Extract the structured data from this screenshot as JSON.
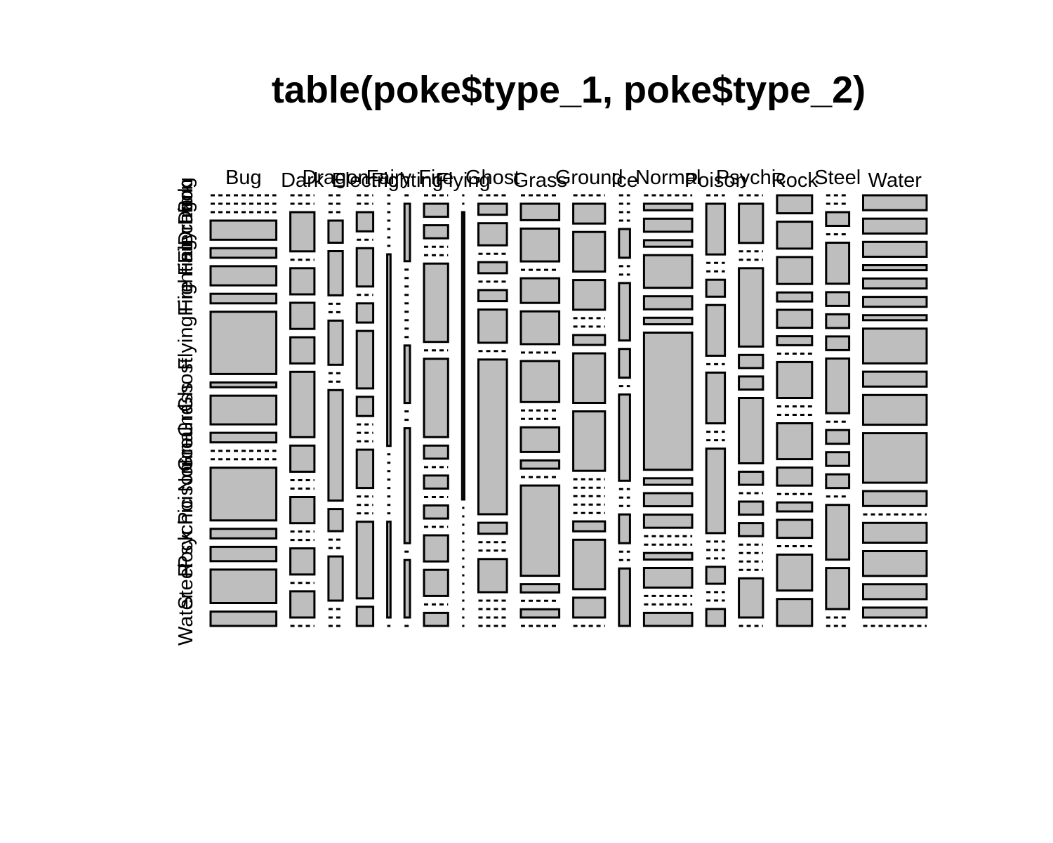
{
  "chart_data": {
    "type": "mosaic",
    "title": "table(poke$type_1, poke$type_2)",
    "xlabel": "",
    "ylabel": "",
    "column_variable_levels": [
      "Bug",
      "Dark",
      "Dragon",
      "Electric",
      "Fairy",
      "Fighting",
      "Fire",
      "Flying",
      "Ghost",
      "Grass",
      "Ground",
      "Ice",
      "Normal",
      "Poison",
      "Psychic",
      "Rock",
      "Steel",
      "Water"
    ],
    "row_variable_levels": [
      "Bug",
      "Dark",
      "Dragon",
      "Electric",
      "Fairy",
      "Fighting",
      "Fire",
      "Flying",
      "Ghost",
      "Grass",
      "Ground",
      "Ice",
      "Normal",
      "Poison",
      "Psychic",
      "Rock",
      "Steel",
      "Water"
    ],
    "counts": [
      [
        0,
        0,
        0,
        4,
        2,
        4,
        2,
        13,
        1,
        6,
        2,
        0,
        0,
        11,
        2,
        3,
        7,
        3
      ],
      [
        0,
        0,
        3,
        0,
        2,
        2,
        2,
        5,
        2,
        0,
        0,
        2,
        0,
        0,
        2,
        0,
        2,
        0
      ],
      [
        0,
        0,
        0,
        1,
        2,
        0,
        0,
        2,
        0,
        0,
        5,
        1,
        0,
        0,
        2,
        0,
        0,
        0
      ],
      [
        0,
        0,
        1,
        0,
        2,
        0,
        1,
        3,
        1,
        0,
        0,
        0,
        2,
        0,
        0,
        0,
        4,
        1
      ],
      [
        0,
        0,
        0,
        0,
        0,
        0,
        0,
        2,
        0,
        0,
        0,
        0,
        0,
        0,
        0,
        0,
        1,
        0
      ],
      [
        0,
        1,
        0,
        0,
        0,
        0,
        0,
        0,
        0,
        0,
        0,
        1,
        0,
        0,
        2,
        0,
        1,
        0
      ],
      [
        0,
        1,
        1,
        0,
        0,
        6,
        0,
        6,
        1,
        0,
        1,
        0,
        1,
        0,
        2,
        2,
        0,
        1
      ],
      [
        0,
        0,
        2,
        0,
        0,
        0,
        0,
        0,
        0,
        0,
        0,
        0,
        0,
        0,
        0,
        0,
        0,
        0
      ],
      [
        0,
        1,
        2,
        0,
        1,
        0,
        1,
        3,
        0,
        14,
        1,
        0,
        0,
        3,
        0,
        0,
        0,
        0
      ],
      [
        0,
        2,
        4,
        0,
        3,
        4,
        0,
        5,
        0,
        0,
        3,
        1,
        0,
        11,
        1,
        0,
        1,
        0
      ],
      [
        0,
        2,
        4,
        3,
        0,
        0,
        1,
        5,
        6,
        0,
        0,
        0,
        0,
        0,
        1,
        5,
        2,
        0
      ],
      [
        0,
        0,
        0,
        0,
        1,
        0,
        0,
        2,
        1,
        0,
        3,
        0,
        0,
        0,
        1,
        0,
        0,
        2
      ],
      [
        0,
        1,
        2,
        1,
        5,
        2,
        1,
        21,
        1,
        2,
        2,
        0,
        0,
        1,
        3,
        0,
        0,
        2
      ],
      [
        0,
        3,
        0,
        0,
        1,
        3,
        0,
        3,
        0,
        0,
        5,
        0,
        0,
        0,
        1,
        0,
        0,
        1
      ],
      [
        0,
        3,
        0,
        0,
        6,
        1,
        1,
        5,
        1,
        0,
        1,
        1,
        0,
        0,
        0,
        0,
        3,
        0
      ],
      [
        2,
        3,
        3,
        1,
        2,
        1,
        0,
        4,
        0,
        0,
        4,
        2,
        0,
        1,
        2,
        0,
        4,
        3
      ],
      [
        0,
        0,
        1,
        0,
        3,
        1,
        1,
        1,
        4,
        0,
        1,
        1,
        1,
        0,
        4,
        3,
        0,
        0
      ],
      [
        3,
        3,
        3,
        1,
        2,
        2,
        1,
        7,
        3,
        6,
        10,
        3,
        0,
        4,
        5,
        3,
        2,
        0
      ]
    ]
  }
}
